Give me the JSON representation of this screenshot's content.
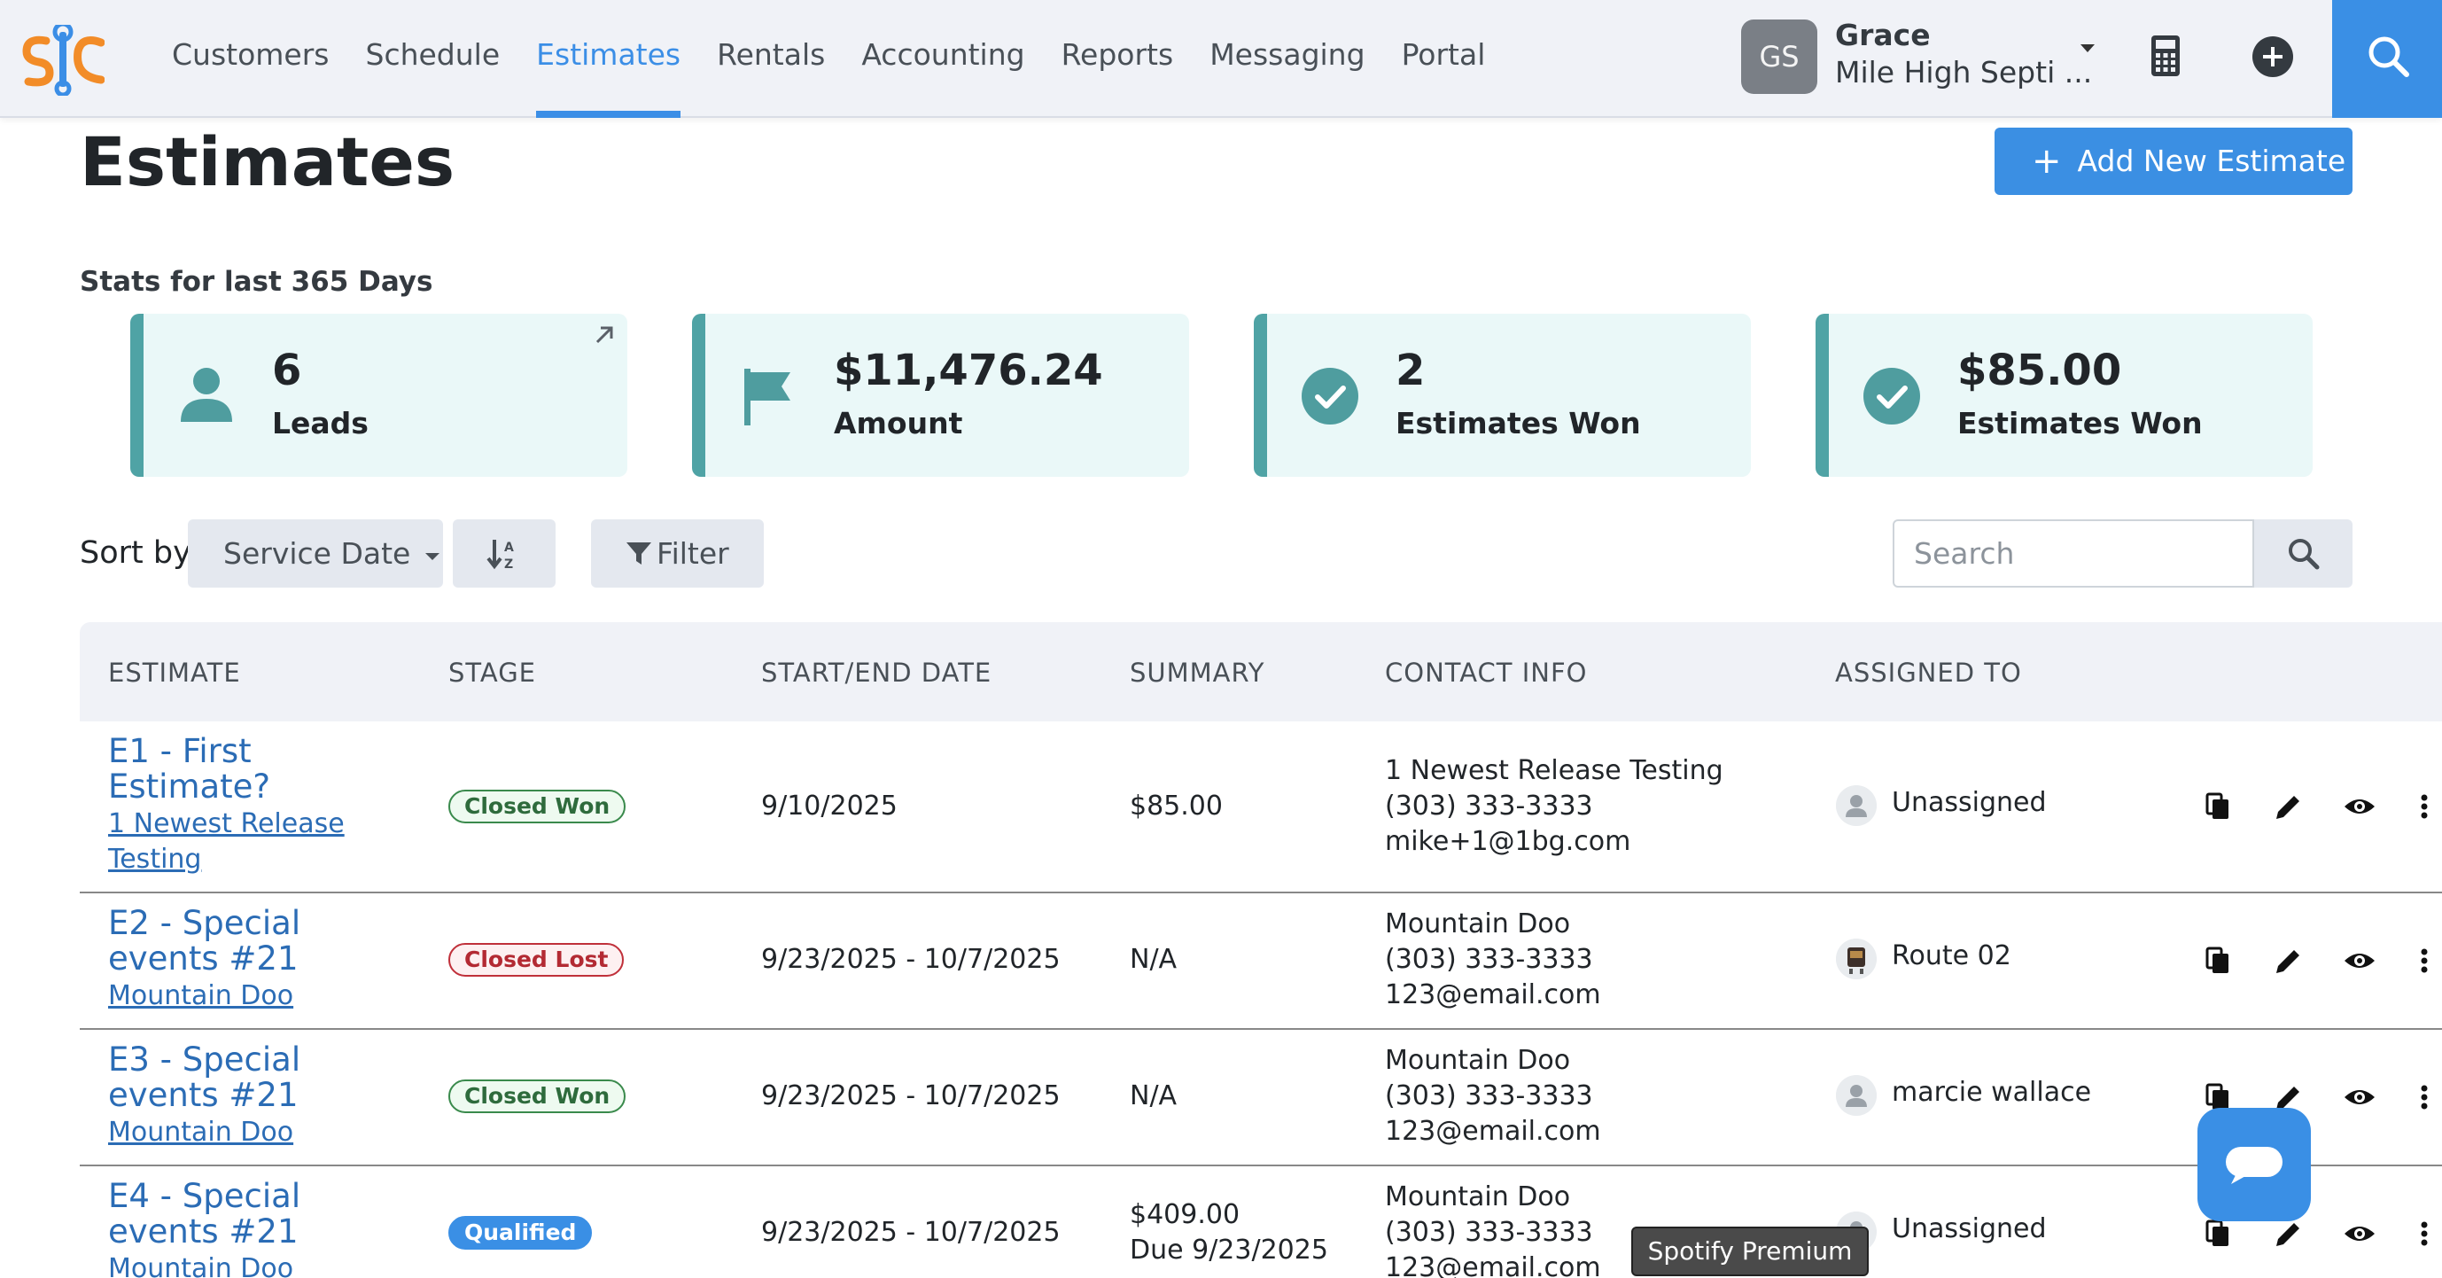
{
  "app": {
    "logo_text": "s|c",
    "colors": {
      "accent": "#3b8ee6",
      "teal": "#4fa3a5",
      "logo_orange": "#f28c28"
    }
  },
  "nav": {
    "items": [
      "Customers",
      "Schedule",
      "Estimates",
      "Rentals",
      "Accounting",
      "Reports",
      "Messaging",
      "Portal"
    ],
    "active": "Estimates"
  },
  "user": {
    "initials": "GS",
    "name": "Grace",
    "company": "Mile High Septi ..."
  },
  "header_icons": [
    "calculator-icon",
    "plus-circle-icon",
    "search-icon"
  ],
  "page": {
    "title": "Estimates",
    "add_button": "Add New Estimate",
    "stats_label": "Stats for last 365 Days"
  },
  "stats": [
    {
      "value": "6",
      "label": "Leads",
      "icon": "user-icon"
    },
    {
      "value": "$11,476.24",
      "label": "Amount",
      "icon": "flag-icon"
    },
    {
      "value": "2",
      "label": "Estimates Won",
      "icon": "check-circle-icon"
    },
    {
      "value": "$85.00",
      "label": "Estimates Won",
      "icon": "check-circle-icon"
    }
  ],
  "controls": {
    "sort_by_label": "Sort by",
    "sort_field": "Service Date",
    "filter_label": "Filter",
    "search_placeholder": "Search"
  },
  "table": {
    "headers": [
      "ESTIMATE",
      "STAGE",
      "START/END DATE",
      "SUMMARY",
      "CONTACT INFO",
      "ASSIGNED TO"
    ],
    "rows": [
      {
        "title_line1": "E1 - First",
        "title_line2": "Estimate?",
        "customer_line1": "1 Newest Release",
        "customer_line2": "Testing",
        "stage": "Closed Won",
        "dates": "9/10/2025",
        "summary_line1": "$85.00",
        "summary_line2": "",
        "contact_name": "1 Newest Release Testing",
        "contact_phone": "(303) 333-3333",
        "contact_email": "mike+1@1bg.com",
        "assigned": "Unassigned"
      },
      {
        "title_line1": "E2 - Special",
        "title_line2": "events #21",
        "customer_line1": "Mountain Doo",
        "customer_line2": "",
        "stage": "Closed Lost",
        "dates": "9/23/2025 - 10/7/2025",
        "summary_line1": "N/A",
        "summary_line2": "",
        "contact_name": "Mountain Doo",
        "contact_phone": "(303) 333-3333",
        "contact_email": "123@email.com",
        "assigned": "Route 02"
      },
      {
        "title_line1": "E3 - Special",
        "title_line2": "events #21",
        "customer_line1": "Mountain Doo",
        "customer_line2": "",
        "stage": "Closed Won",
        "dates": "9/23/2025 - 10/7/2025",
        "summary_line1": "N/A",
        "summary_line2": "",
        "contact_name": "Mountain Doo",
        "contact_phone": "(303) 333-3333",
        "contact_email": "123@email.com",
        "assigned": "marcie wallace"
      },
      {
        "title_line1": "E4 - Special",
        "title_line2": "events #21",
        "customer_line1": "Mountain Doo",
        "customer_line2": "",
        "stage": "Qualified",
        "dates": "9/23/2025 - 10/7/2025",
        "summary_line1": "$409.00",
        "summary_line2": "Due 9/23/2025",
        "contact_name": "Mountain Doo",
        "contact_phone": "(303) 333-3333",
        "contact_email": "123@email.com",
        "assigned": "Unassigned"
      }
    ],
    "row_actions": [
      "copy-icon",
      "edit-pencil-icon",
      "view-eye-icon",
      "more-vertical-icon"
    ]
  },
  "tooltip": "Spotify Premium"
}
